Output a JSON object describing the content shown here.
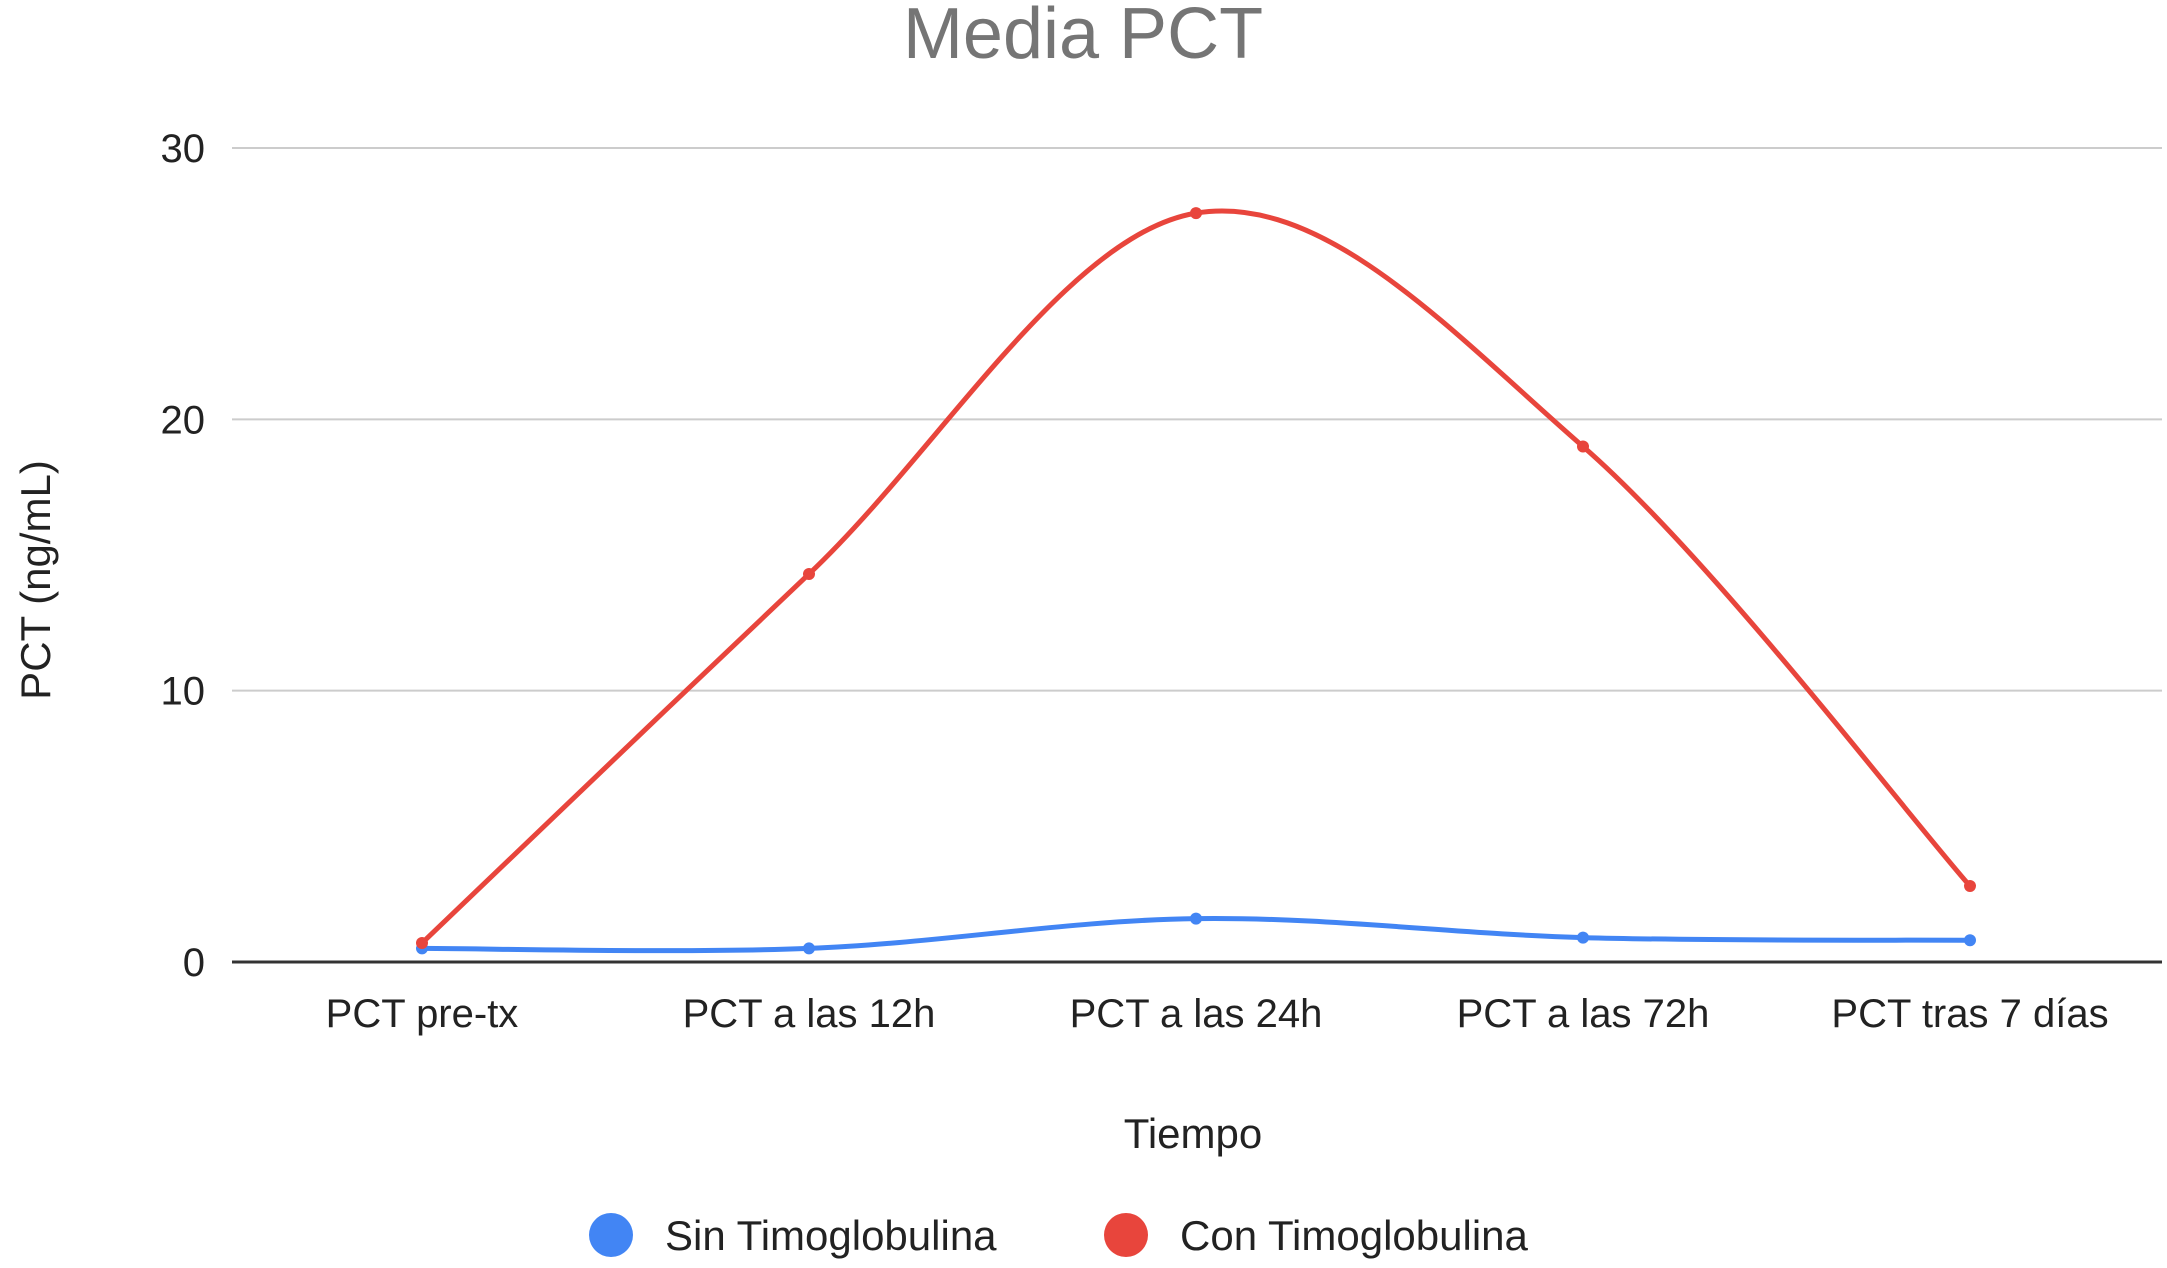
{
  "chart_data": {
    "type": "line",
    "title": "Media PCT",
    "xlabel": "Tiempo",
    "ylabel": "PCT (ng/mL)",
    "categories": [
      "PCT pre-tx",
      "PCT a las 12h",
      "PCT a las 24h",
      "PCT a las 72h",
      "PCT tras 7 días"
    ],
    "yticks": [
      "0",
      "10",
      "20",
      "30"
    ],
    "ylim": [
      0,
      30
    ],
    "grid": true,
    "legend_position": "bottom",
    "curve": "smooth",
    "series": [
      {
        "name": "Sin Timoglobulina",
        "color": "#4285f4",
        "values": [
          0.5,
          0.5,
          1.6,
          0.9,
          0.8
        ]
      },
      {
        "name": "Con Timoglobulina",
        "color": "#e8453c",
        "values": [
          0.7,
          14.3,
          27.6,
          19.0,
          2.8
        ]
      }
    ]
  }
}
